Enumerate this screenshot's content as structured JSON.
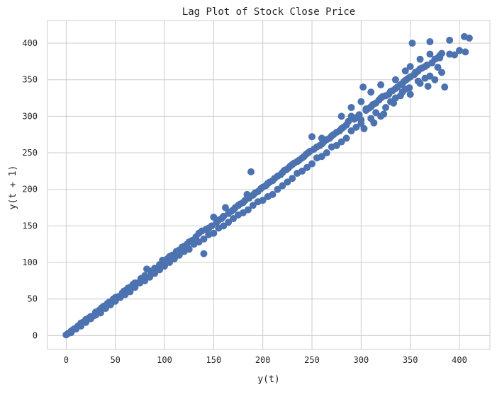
{
  "chart_data": {
    "type": "scatter",
    "title": "Lag Plot of Stock Close Price",
    "xlabel": "y(t)",
    "ylabel": "y(t + 1)",
    "xlim": [
      -19,
      431
    ],
    "ylim": [
      -19,
      431
    ],
    "x_ticks": [
      0,
      50,
      100,
      150,
      200,
      250,
      300,
      350,
      400
    ],
    "y_ticks": [
      0,
      50,
      100,
      150,
      200,
      250,
      300,
      350,
      400
    ],
    "x_tick_labels": [
      "0",
      "50",
      "100",
      "150",
      "200",
      "250",
      "300",
      "350",
      "400"
    ],
    "y_tick_labels": [
      "0",
      "50",
      "100",
      "150",
      "200",
      "250",
      "300",
      "350",
      "400"
    ],
    "grid": true,
    "legend": "none",
    "marker_color": "#4c72b0",
    "grid_color": "#cccccc",
    "series": [
      {
        "points": [
          [
            0,
            1
          ],
          [
            2,
            3
          ],
          [
            4,
            4
          ],
          [
            5,
            6
          ],
          [
            7,
            8
          ],
          [
            8,
            9
          ],
          [
            10,
            10
          ],
          [
            12,
            13
          ],
          [
            14,
            14
          ],
          [
            15,
            17
          ],
          [
            17,
            18
          ],
          [
            19,
            19
          ],
          [
            20,
            22
          ],
          [
            22,
            23
          ],
          [
            24,
            25
          ],
          [
            25,
            26
          ],
          [
            28,
            27
          ],
          [
            30,
            32
          ],
          [
            32,
            33
          ],
          [
            34,
            35
          ],
          [
            36,
            38
          ],
          [
            38,
            40
          ],
          [
            40,
            41
          ],
          [
            42,
            44
          ],
          [
            44,
            46
          ],
          [
            46,
            45
          ],
          [
            48,
            50
          ],
          [
            50,
            52
          ],
          [
            52,
            53
          ],
          [
            55,
            54
          ],
          [
            57,
            58
          ],
          [
            59,
            61
          ],
          [
            61,
            62
          ],
          [
            63,
            65
          ],
          [
            65,
            66
          ],
          [
            68,
            70
          ],
          [
            70,
            72
          ],
          [
            73,
            72
          ],
          [
            76,
            78
          ],
          [
            80,
            82
          ],
          [
            82,
            91
          ],
          [
            86,
            88
          ],
          [
            90,
            92
          ],
          [
            92,
            90
          ],
          [
            95,
            97
          ],
          [
            98,
            103
          ],
          [
            100,
            101
          ],
          [
            103,
            105
          ],
          [
            105,
            108
          ],
          [
            108,
            110
          ],
          [
            110,
            109
          ],
          [
            112,
            115
          ],
          [
            115,
            117
          ],
          [
            118,
            121
          ],
          [
            120,
            122
          ],
          [
            123,
            125
          ],
          [
            125,
            128
          ],
          [
            128,
            130
          ],
          [
            130,
            131
          ],
          [
            132,
            135
          ],
          [
            135,
            140
          ],
          [
            138,
            143
          ],
          [
            140,
            112
          ],
          [
            142,
            145
          ],
          [
            145,
            147
          ],
          [
            148,
            150
          ],
          [
            150,
            162
          ],
          [
            153,
            155
          ],
          [
            155,
            158
          ],
          [
            158,
            160
          ],
          [
            160,
            163
          ],
          [
            162,
            175
          ],
          [
            165,
            167
          ],
          [
            168,
            170
          ],
          [
            170,
            172
          ],
          [
            172,
            175
          ],
          [
            175,
            178
          ],
          [
            177,
            180
          ],
          [
            180,
            182
          ],
          [
            182,
            185
          ],
          [
            184,
            193
          ],
          [
            186,
            188
          ],
          [
            188,
            224
          ],
          [
            190,
            192
          ],
          [
            192,
            195
          ],
          [
            195,
            197
          ],
          [
            198,
            201
          ],
          [
            200,
            203
          ],
          [
            203,
            205
          ],
          [
            205,
            208
          ],
          [
            207,
            210
          ],
          [
            210,
            212
          ],
          [
            212,
            215
          ],
          [
            215,
            218
          ],
          [
            218,
            220
          ],
          [
            220,
            223
          ],
          [
            222,
            226
          ],
          [
            224,
            227
          ],
          [
            226,
            229
          ],
          [
            228,
            232
          ],
          [
            230,
            234
          ],
          [
            232,
            236
          ],
          [
            235,
            238
          ],
          [
            237,
            240
          ],
          [
            240,
            243
          ],
          [
            242,
            245
          ],
          [
            244,
            248
          ],
          [
            246,
            250
          ],
          [
            248,
            252
          ],
          [
            250,
            272
          ],
          [
            252,
            255
          ],
          [
            255,
            258
          ],
          [
            258,
            260
          ],
          [
            260,
            262
          ],
          [
            262,
            265
          ],
          [
            265,
            268
          ],
          [
            268,
            270
          ],
          [
            270,
            273
          ],
          [
            272,
            275
          ],
          [
            275,
            278
          ],
          [
            278,
            280
          ],
          [
            280,
            283
          ],
          [
            282,
            285
          ],
          [
            285,
            288
          ],
          [
            287,
            293
          ],
          [
            290,
            300
          ],
          [
            293,
            296
          ],
          [
            295,
            298
          ],
          [
            298,
            302
          ],
          [
            300,
            295
          ],
          [
            302,
            340
          ],
          [
            305,
            308
          ],
          [
            308,
            311
          ],
          [
            310,
            313
          ],
          [
            312,
            316
          ],
          [
            315,
            318
          ],
          [
            318,
            322
          ],
          [
            320,
            325
          ],
          [
            322,
            327
          ],
          [
            325,
            328
          ],
          [
            328,
            330
          ],
          [
            330,
            334
          ],
          [
            332,
            335
          ],
          [
            335,
            338
          ],
          [
            337,
            340
          ],
          [
            340,
            343
          ],
          [
            342,
            345
          ],
          [
            344,
            348
          ],
          [
            346,
            350
          ],
          [
            348,
            352
          ],
          [
            350,
            354
          ],
          [
            352,
            400
          ],
          [
            354,
            357
          ],
          [
            356,
            360
          ],
          [
            358,
            362
          ],
          [
            360,
            365
          ],
          [
            362,
            366
          ],
          [
            365,
            368
          ],
          [
            367,
            370
          ],
          [
            370,
            402
          ],
          [
            372,
            373
          ],
          [
            375,
            378
          ],
          [
            378,
            380
          ],
          [
            380,
            383
          ],
          [
            385,
            340
          ],
          [
            390,
            404
          ],
          [
            395,
            384
          ],
          [
            400,
            390
          ],
          [
            405,
            409
          ],
          [
            410,
            407
          ],
          [
            406,
            388
          ],
          [
            382,
            386
          ],
          [
            378,
            367
          ],
          [
            370,
            355
          ],
          [
            365,
            352
          ],
          [
            360,
            345
          ],
          [
            355,
            360
          ],
          [
            350,
            330
          ],
          [
            345,
            337
          ],
          [
            340,
            328
          ],
          [
            335,
            325
          ],
          [
            330,
            320
          ],
          [
            325,
            312
          ],
          [
            320,
            300
          ],
          [
            315,
            305
          ],
          [
            310,
            297
          ],
          [
            305,
            310
          ],
          [
            300,
            290
          ],
          [
            295,
            285
          ],
          [
            290,
            280
          ],
          [
            285,
            270
          ],
          [
            280,
            265
          ],
          [
            275,
            260
          ],
          [
            270,
            258
          ],
          [
            265,
            250
          ],
          [
            260,
            245
          ],
          [
            255,
            243
          ],
          [
            250,
            235
          ],
          [
            245,
            230
          ],
          [
            240,
            225
          ],
          [
            235,
            222
          ],
          [
            230,
            215
          ],
          [
            225,
            210
          ],
          [
            220,
            205
          ],
          [
            215,
            200
          ],
          [
            210,
            193
          ],
          [
            205,
            190
          ],
          [
            200,
            185
          ],
          [
            195,
            183
          ],
          [
            190,
            178
          ],
          [
            185,
            172
          ],
          [
            180,
            168
          ],
          [
            175,
            165
          ],
          [
            170,
            160
          ],
          [
            165,
            155
          ],
          [
            160,
            150
          ],
          [
            155,
            147
          ],
          [
            150,
            140
          ],
          [
            145,
            138
          ],
          [
            140,
            132
          ],
          [
            135,
            128
          ],
          [
            130,
            125
          ],
          [
            125,
            118
          ],
          [
            120,
            115
          ],
          [
            115,
            110
          ],
          [
            110,
            105
          ],
          [
            105,
            100
          ],
          [
            100,
            95
          ],
          [
            95,
            90
          ],
          [
            90,
            85
          ],
          [
            85,
            80
          ],
          [
            80,
            75
          ],
          [
            75,
            72
          ],
          [
            70,
            66
          ],
          [
            65,
            60
          ],
          [
            60,
            56
          ],
          [
            55,
            52
          ],
          [
            50,
            47
          ],
          [
            45,
            42
          ],
          [
            40,
            37
          ],
          [
            35,
            31
          ],
          [
            30,
            28
          ],
          [
            25,
            23
          ],
          [
            20,
            18
          ],
          [
            15,
            13
          ],
          [
            10,
            9
          ],
          [
            5,
            4
          ],
          [
            290,
            312
          ],
          [
            280,
            300
          ],
          [
            260,
            270
          ],
          [
            300,
            320
          ],
          [
            310,
            333
          ],
          [
            320,
            343
          ],
          [
            335,
            350
          ],
          [
            345,
            362
          ],
          [
            350,
            368
          ],
          [
            360,
            378
          ],
          [
            370,
            385
          ],
          [
            380,
            380
          ],
          [
            390,
            385
          ],
          [
            368,
            341
          ],
          [
            375,
            350
          ],
          [
            382,
            360
          ],
          [
            358,
            348
          ],
          [
            349,
            339
          ],
          [
            342,
            333
          ],
          [
            333,
            318
          ],
          [
            323,
            303
          ],
          [
            313,
            291
          ],
          [
            303,
            283
          ]
        ]
      }
    ]
  }
}
